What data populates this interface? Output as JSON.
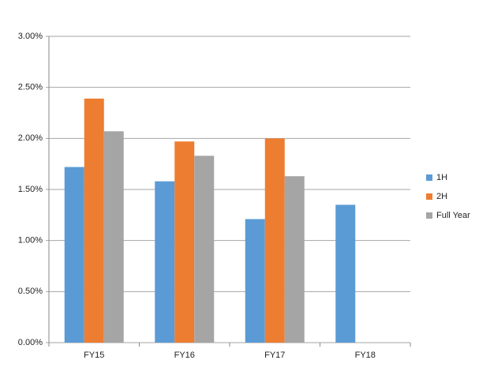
{
  "chart_data": {
    "type": "bar",
    "categories": [
      "FY15",
      "FY16",
      "FY17",
      "FY18"
    ],
    "series": [
      {
        "name": "1H",
        "color": "#5b9bd5",
        "values": [
          1.72,
          1.58,
          1.21,
          1.35
        ]
      },
      {
        "name": "2H",
        "color": "#ed7d31",
        "values": [
          2.39,
          1.97,
          2.0,
          null
        ]
      },
      {
        "name": "Full Year",
        "color": "#a5a5a5",
        "values": [
          2.07,
          1.83,
          1.63,
          null
        ]
      }
    ],
    "ylim": [
      0,
      3
    ],
    "yticks": [
      {
        "value": 0,
        "label": "0.00%"
      },
      {
        "value": 0.5,
        "label": "0.50%"
      },
      {
        "value": 1,
        "label": "1.00%"
      },
      {
        "value": 1.5,
        "label": "1.50%"
      },
      {
        "value": 2,
        "label": "2.00%"
      },
      {
        "value": 2.5,
        "label": "2.50%"
      },
      {
        "value": 3,
        "label": "3.00%"
      }
    ],
    "grid": true,
    "legend": "right"
  }
}
